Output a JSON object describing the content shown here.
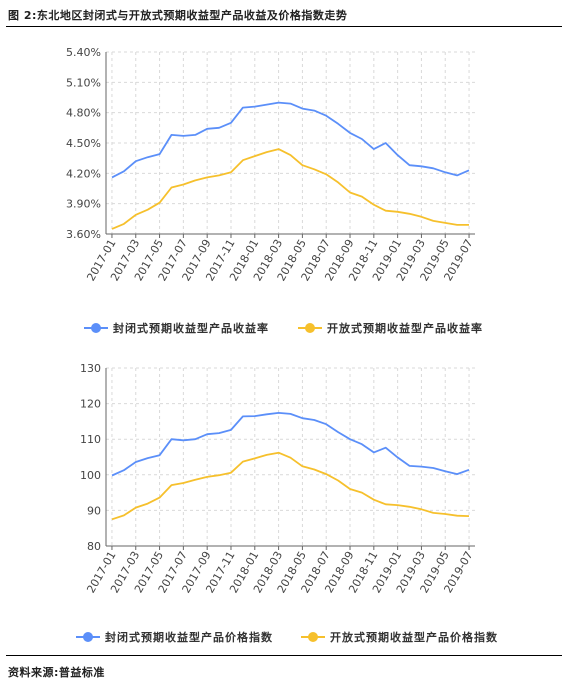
{
  "caption": "图 2:东北地区封闭式与开放式预期收益型产品收益及价格指数走势",
  "source": "资料来源:普益标准",
  "colors": {
    "series1": "#5b8ff9",
    "series2": "#f6c02c",
    "grid": "#d9d9d9",
    "axis": "#666666"
  },
  "chart_data": [
    {
      "type": "line",
      "title": "",
      "xlabel": "",
      "ylabel": "",
      "ylim": [
        3.6,
        5.4
      ],
      "yticks": [
        "3.60%",
        "3.90%",
        "4.20%",
        "4.50%",
        "4.80%",
        "5.10%",
        "5.40%"
      ],
      "ytick_values": [
        3.6,
        3.9,
        4.2,
        4.5,
        4.8,
        5.1,
        5.4
      ],
      "grid": true,
      "legend_position": "bottom",
      "x": [
        "2017-01",
        "2017-02",
        "2017-03",
        "2017-04",
        "2017-05",
        "2017-06",
        "2017-07",
        "2017-08",
        "2017-09",
        "2017-10",
        "2017-11",
        "2017-12",
        "2018-01",
        "2018-02",
        "2018-03",
        "2018-04",
        "2018-05",
        "2018-06",
        "2018-07",
        "2018-08",
        "2018-09",
        "2018-10",
        "2018-11",
        "2018-12",
        "2019-01",
        "2019-02",
        "2019-03",
        "2019-04",
        "2019-05",
        "2019-06",
        "2019-07"
      ],
      "xticks": [
        "2017-01",
        "2017-03",
        "2017-05",
        "2017-07",
        "2017-09",
        "2017-11",
        "2018-01",
        "2018-03",
        "2018-05",
        "2018-07",
        "2018-09",
        "2018-11",
        "2019-01",
        "2019-03",
        "2019-05",
        "2019-07"
      ],
      "series": [
        {
          "name": "封闭式预期收益型产品收益率",
          "values": [
            4.16,
            4.22,
            4.32,
            4.36,
            4.39,
            4.58,
            4.57,
            4.58,
            4.64,
            4.65,
            4.7,
            4.85,
            4.86,
            4.88,
            4.9,
            4.89,
            4.84,
            4.82,
            4.77,
            4.69,
            4.6,
            4.54,
            4.44,
            4.5,
            4.38,
            4.28,
            4.27,
            4.25,
            4.21,
            4.18,
            4.23
          ]
        },
        {
          "name": "开放式预期收益型产品收益率",
          "values": [
            3.65,
            3.7,
            3.79,
            3.84,
            3.91,
            4.06,
            4.09,
            4.13,
            4.16,
            4.18,
            4.21,
            4.33,
            4.37,
            4.41,
            4.44,
            4.38,
            4.28,
            4.24,
            4.19,
            4.11,
            4.01,
            3.97,
            3.89,
            3.83,
            3.82,
            3.8,
            3.77,
            3.73,
            3.71,
            3.69,
            3.69
          ]
        }
      ]
    },
    {
      "type": "line",
      "title": "",
      "xlabel": "",
      "ylabel": "",
      "ylim": [
        80,
        130
      ],
      "yticks": [
        "80",
        "90",
        "100",
        "110",
        "120",
        "130"
      ],
      "ytick_values": [
        80,
        90,
        100,
        110,
        120,
        130
      ],
      "grid": true,
      "legend_position": "bottom",
      "x": [
        "2017-01",
        "2017-02",
        "2017-03",
        "2017-04",
        "2017-05",
        "2017-06",
        "2017-07",
        "2017-08",
        "2017-09",
        "2017-10",
        "2017-11",
        "2017-12",
        "2018-01",
        "2018-02",
        "2018-03",
        "2018-04",
        "2018-05",
        "2018-06",
        "2018-07",
        "2018-08",
        "2018-09",
        "2018-10",
        "2018-11",
        "2018-12",
        "2019-01",
        "2019-02",
        "2019-03",
        "2019-04",
        "2019-05",
        "2019-06",
        "2019-07"
      ],
      "xticks": [
        "2017-01",
        "2017-03",
        "2017-05",
        "2017-07",
        "2017-09",
        "2017-11",
        "2018-01",
        "2018-03",
        "2018-05",
        "2018-07",
        "2018-09",
        "2018-11",
        "2019-01",
        "2019-03",
        "2019-05",
        "2019-07"
      ],
      "series": [
        {
          "name": "封闭式预期收益型产品价格指数",
          "values": [
            99.8,
            101.3,
            103.6,
            104.7,
            105.5,
            110.0,
            109.7,
            110.0,
            111.4,
            111.7,
            112.6,
            116.4,
            116.5,
            117.0,
            117.4,
            117.1,
            115.9,
            115.4,
            114.2,
            112.0,
            110.0,
            108.6,
            106.3,
            107.6,
            104.9,
            102.5,
            102.3,
            101.9,
            101.0,
            100.2,
            101.4
          ]
        },
        {
          "name": "开放式预期收益型产品价格指数",
          "values": [
            87.5,
            88.6,
            90.8,
            91.9,
            93.6,
            97.1,
            97.7,
            98.6,
            99.4,
            99.9,
            100.6,
            103.7,
            104.6,
            105.6,
            106.2,
            104.8,
            102.4,
            101.5,
            100.2,
            98.4,
            96.0,
            95.0,
            93.0,
            91.7,
            91.5,
            91.0,
            90.3,
            89.3,
            89.0,
            88.5,
            88.4
          ]
        }
      ]
    }
  ]
}
